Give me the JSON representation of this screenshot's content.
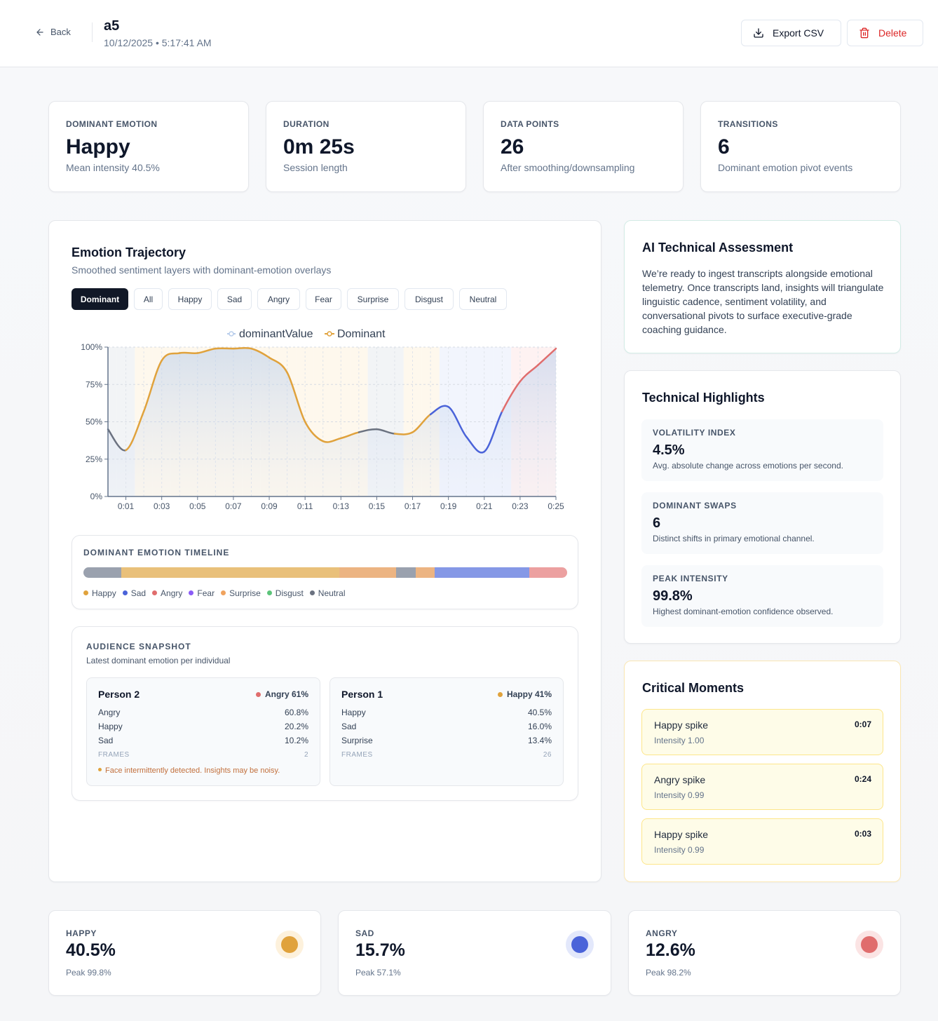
{
  "header": {
    "back_label": "Back",
    "title": "a5",
    "subtitle": "10/12/2025 • 5:17:41 AM",
    "export_label": "Export CSV",
    "delete_label": "Delete"
  },
  "stats": [
    {
      "label": "DOMINANT EMOTION",
      "value": "Happy",
      "sub": "Mean intensity 40.5%"
    },
    {
      "label": "DURATION",
      "value": "0m 25s",
      "sub": "Session length"
    },
    {
      "label": "DATA POINTS",
      "value": "26",
      "sub": "After smoothing/downsampling"
    },
    {
      "label": "TRANSITIONS",
      "value": "6",
      "sub": "Dominant emotion pivot events"
    }
  ],
  "trajectory": {
    "title": "Emotion Trajectory",
    "subtitle": "Smoothed sentiment layers with dominant-emotion overlays",
    "filters": [
      "Dominant",
      "All",
      "Happy",
      "Sad",
      "Angry",
      "Fear",
      "Surprise",
      "Disgust",
      "Neutral"
    ],
    "active_filter": "Dominant"
  },
  "chart_data": {
    "type": "line",
    "legend": [
      "dominantValue",
      "Dominant"
    ],
    "x_tick_labels": [
      "0:01",
      "0:03",
      "0:05",
      "0:07",
      "0:09",
      "0:11",
      "0:13",
      "0:15",
      "0:17",
      "0:19",
      "0:21",
      "0:23",
      "0:25"
    ],
    "y_tick_labels": [
      "0%",
      "25%",
      "50%",
      "75%",
      "100%"
    ],
    "ylim": [
      0,
      100
    ],
    "xlim": [
      0,
      25
    ],
    "x": [
      0,
      1,
      2,
      3,
      4,
      5,
      6,
      7,
      8,
      9,
      10,
      11,
      12,
      13,
      14,
      15,
      16,
      17,
      18,
      19,
      20,
      21,
      22,
      23,
      24,
      25
    ],
    "values": [
      45,
      31,
      57,
      91,
      96,
      96,
      99,
      99,
      99,
      93,
      83,
      50,
      37,
      39,
      43,
      45,
      42,
      43,
      55,
      60,
      40,
      30,
      57,
      77,
      88,
      99
    ],
    "dominant": [
      "Neutral",
      "Neutral",
      "Happy",
      "Happy",
      "Happy",
      "Happy",
      "Happy",
      "Happy",
      "Happy",
      "Happy",
      "Happy",
      "Happy",
      "Happy",
      "Happy",
      "Happy",
      "Neutral",
      "Neutral",
      "Happy",
      "Happy",
      "Sad",
      "Sad",
      "Sad",
      "Sad",
      "Angry",
      "Angry",
      "Angry"
    ],
    "xlabel": "",
    "ylabel": ""
  },
  "timeline": {
    "title": "DOMINANT EMOTION TIMELINE",
    "segments": [
      {
        "emotion": "Neutral",
        "start": 0,
        "end": 2
      },
      {
        "emotion": "Happy",
        "start": 2,
        "end": 13.5
      },
      {
        "emotion": "Surprise",
        "start": 13.5,
        "end": 16.5
      },
      {
        "emotion": "Neutral",
        "start": 16.5,
        "end": 17.5
      },
      {
        "emotion": "Surprise",
        "start": 17.5,
        "end": 18.5
      },
      {
        "emotion": "Sad",
        "start": 18.5,
        "end": 23.5
      },
      {
        "emotion": "Angry",
        "start": 23.5,
        "end": 25.5
      }
    ],
    "legend": [
      {
        "label": "Happy",
        "color": "#e0a23c"
      },
      {
        "label": "Sad",
        "color": "#4a63d9"
      },
      {
        "label": "Angry",
        "color": "#e06d6d"
      },
      {
        "label": "Fear",
        "color": "#8b5cf6"
      },
      {
        "label": "Surprise",
        "color": "#f0a35e"
      },
      {
        "label": "Disgust",
        "color": "#5cc47a"
      },
      {
        "label": "Neutral",
        "color": "#6b7280"
      }
    ]
  },
  "audience": {
    "title": "AUDIENCE SNAPSHOT",
    "subtitle": "Latest dominant emotion per individual",
    "frames_label": "FRAMES",
    "people": [
      {
        "name": "Person 2",
        "badge": "Angry 61%",
        "badge_color": "#e06d6d",
        "rows": [
          {
            "label": "Angry",
            "value": "60.8%"
          },
          {
            "label": "Happy",
            "value": "20.2%"
          },
          {
            "label": "Sad",
            "value": "10.2%"
          }
        ],
        "frames": "2",
        "warning": "Face intermittently detected. Insights may be noisy."
      },
      {
        "name": "Person 1",
        "badge": "Happy 41%",
        "badge_color": "#e0a23c",
        "rows": [
          {
            "label": "Happy",
            "value": "40.5%"
          },
          {
            "label": "Sad",
            "value": "16.0%"
          },
          {
            "label": "Surprise",
            "value": "13.4%"
          }
        ],
        "frames": "26"
      }
    ]
  },
  "assessment": {
    "title": "AI Technical Assessment",
    "body": "We’re ready to ingest transcripts alongside emotional telemetry. Once transcripts land, insights will triangulate linguistic cadence, sentiment volatility, and conversational pivots to surface executive-grade coaching guidance."
  },
  "highlights": {
    "title": "Technical Highlights",
    "items": [
      {
        "label": "VOLATILITY INDEX",
        "value": "4.5%",
        "sub": "Avg. absolute change across emotions per second."
      },
      {
        "label": "DOMINANT SWAPS",
        "value": "6",
        "sub": "Distinct shifts in primary emotional channel."
      },
      {
        "label": "PEAK INTENSITY",
        "value": "99.8%",
        "sub": "Highest dominant-emotion confidence observed."
      }
    ]
  },
  "critical": {
    "title": "Critical Moments",
    "items": [
      {
        "title": "Happy spike",
        "sub": "Intensity 1.00",
        "time": "0:07"
      },
      {
        "title": "Angry spike",
        "sub": "Intensity 0.99",
        "time": "0:24"
      },
      {
        "title": "Happy spike",
        "sub": "Intensity 0.99",
        "time": "0:03"
      }
    ]
  },
  "emotion_cards": [
    {
      "label": "HAPPY",
      "value": "40.5%",
      "sub": "Peak 99.8%",
      "color": "#e0a23c",
      "ring": "#fdf1dc"
    },
    {
      "label": "SAD",
      "value": "15.7%",
      "sub": "Peak 57.1%",
      "color": "#4a63d9",
      "ring": "#e3e8fb"
    },
    {
      "label": "ANGRY",
      "value": "12.6%",
      "sub": "Peak 98.2%",
      "color": "#e06d6d",
      "ring": "#fbe4e4"
    }
  ],
  "colors": {
    "Happy": "#e0a23c",
    "Sad": "#4a63d9",
    "Angry": "#e06d6d",
    "Neutral": "#6b7280",
    "Surprise": "#f0a35e"
  }
}
